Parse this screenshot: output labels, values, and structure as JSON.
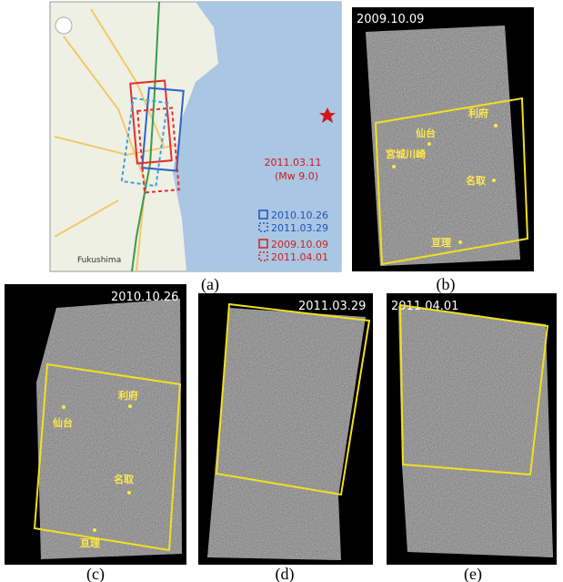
{
  "panels": [
    {
      "label": "(a)",
      "map_label": "Fukushima",
      "event": {
        "date": "2011.03.11",
        "magnitude": "(Mw 9.0)"
      },
      "legend": [
        "2010.10.26",
        "2011.03.29",
        "2009.10.09",
        "2011.04.01"
      ]
    },
    {
      "label": "(b)",
      "date": "2009.10.09",
      "places": [
        "利府",
        "仙台",
        "宮城川崎",
        "名取",
        "亘理"
      ]
    },
    {
      "label": "(c)",
      "date": "2010.10.26",
      "places": [
        "利府",
        "仙台",
        "名取",
        "亘理"
      ]
    },
    {
      "label": "(d)",
      "date": "2011.03.29"
    },
    {
      "label": "(e)",
      "date": "2011.04.01"
    }
  ]
}
